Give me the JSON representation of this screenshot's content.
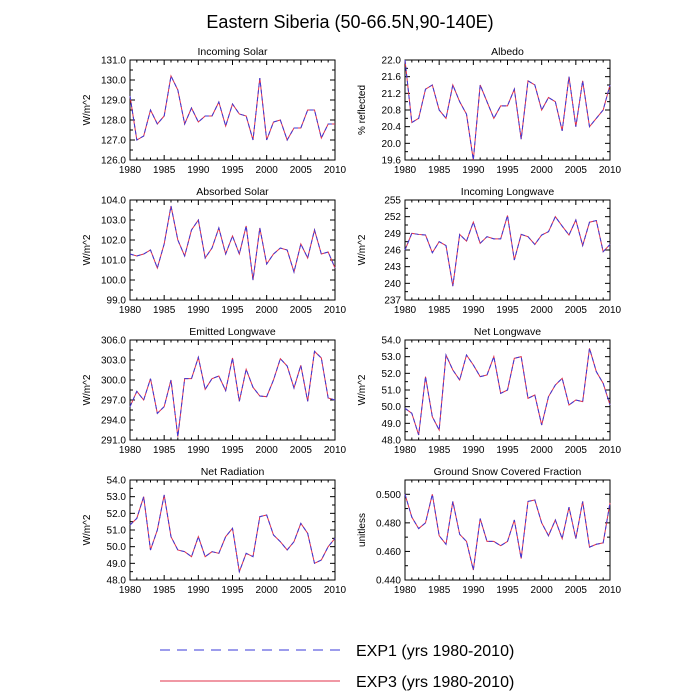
{
  "figure": {
    "title": "Eastern Siberia (50-66.5N,90-140E)",
    "colors": {
      "exp1": "#3a3ad8",
      "exp3": "#e0304a",
      "axis": "#000000"
    }
  },
  "legend": {
    "entries": [
      {
        "name": "EXP1 (yrs 1980-2010)",
        "style": "dashed",
        "color": "#3a3ad8"
      },
      {
        "name": "EXP3 (yrs 1980-2010)",
        "style": "solid",
        "color": "#e0304a"
      }
    ]
  },
  "chart_data": [
    {
      "type": "line",
      "title": "Incoming Solar",
      "ylabel": "W/m^2",
      "ylim": [
        126.0,
        131.0
      ],
      "yticks": [
        126.0,
        127.0,
        128.0,
        129.0,
        130.0,
        131.0
      ],
      "ytick_labels": [
        "126.0",
        "127.0",
        "128.0",
        "129.0",
        "130.0",
        "131.0"
      ],
      "xlim": [
        1980,
        2010
      ],
      "xticks": [
        1980,
        1985,
        1990,
        1995,
        2000,
        2005,
        2010
      ],
      "x": [
        1980,
        1981,
        1982,
        1983,
        1984,
        1985,
        1986,
        1987,
        1988,
        1989,
        1990,
        1991,
        1992,
        1993,
        1994,
        1995,
        1996,
        1997,
        1998,
        1999,
        2000,
        2001,
        2002,
        2003,
        2004,
        2005,
        2006,
        2007,
        2008,
        2009,
        2010
      ],
      "series": [
        {
          "name": "EXP1 (yrs 1980-2010)",
          "values": [
            129.2,
            127.0,
            127.2,
            128.5,
            127.8,
            128.2,
            130.2,
            129.5,
            127.8,
            128.6,
            127.9,
            128.2,
            128.2,
            128.9,
            127.7,
            128.8,
            128.3,
            128.2,
            127.0,
            130.1,
            127.0,
            127.9,
            128.0,
            127.0,
            127.6,
            127.6,
            128.5,
            128.5,
            127.1,
            127.8,
            127.8
          ]
        },
        {
          "name": "EXP3 (yrs 1980-2010)",
          "values": [
            129.2,
            127.0,
            127.2,
            128.5,
            127.8,
            128.2,
            130.2,
            129.5,
            127.8,
            128.6,
            127.9,
            128.2,
            128.2,
            128.9,
            127.7,
            128.8,
            128.3,
            128.2,
            127.0,
            130.1,
            127.0,
            127.9,
            128.0,
            127.0,
            127.6,
            127.6,
            128.5,
            128.5,
            127.1,
            127.8,
            127.8
          ]
        }
      ]
    },
    {
      "type": "line",
      "title": "Albedo",
      "ylabel": "% reflected",
      "ylim": [
        19.6,
        22.0
      ],
      "yticks": [
        19.6,
        20.0,
        20.4,
        20.8,
        21.2,
        21.6,
        22.0
      ],
      "ytick_labels": [
        "19.6",
        "20.0",
        "20.4",
        "20.8",
        "21.2",
        "21.6",
        "22.0"
      ],
      "xlim": [
        1980,
        2010
      ],
      "xticks": [
        1980,
        1985,
        1990,
        1995,
        2000,
        2005,
        2010
      ],
      "x": [
        1980,
        1981,
        1982,
        1983,
        1984,
        1985,
        1986,
        1987,
        1988,
        1989,
        1990,
        1991,
        1992,
        1993,
        1994,
        1995,
        1996,
        1997,
        1998,
        1999,
        2000,
        2001,
        2002,
        2003,
        2004,
        2005,
        2006,
        2007,
        2008,
        2009,
        2010
      ],
      "series": [
        {
          "name": "EXP1 (yrs 1980-2010)",
          "values": [
            22.0,
            20.5,
            20.6,
            21.3,
            21.4,
            20.8,
            20.6,
            21.4,
            21.0,
            20.7,
            19.6,
            21.4,
            21.0,
            20.6,
            20.9,
            20.9,
            21.3,
            20.1,
            21.5,
            21.4,
            20.8,
            21.1,
            21.0,
            20.3,
            21.6,
            20.4,
            21.5,
            20.4,
            20.6,
            20.8,
            21.4
          ]
        },
        {
          "name": "EXP3 (yrs 1980-2010)",
          "values": [
            22.0,
            20.5,
            20.6,
            21.3,
            21.4,
            20.8,
            20.6,
            21.4,
            21.0,
            20.7,
            19.6,
            21.4,
            21.0,
            20.6,
            20.9,
            20.9,
            21.3,
            20.1,
            21.5,
            21.4,
            20.8,
            21.1,
            21.0,
            20.3,
            21.6,
            20.4,
            21.5,
            20.4,
            20.6,
            20.8,
            21.4
          ]
        }
      ]
    },
    {
      "type": "line",
      "title": "Absorbed Solar",
      "ylabel": "W/m^2",
      "ylim": [
        99.0,
        104.0
      ],
      "yticks": [
        99.0,
        100.0,
        101.0,
        102.0,
        103.0,
        104.0
      ],
      "ytick_labels": [
        "99.0",
        "100.0",
        "101.0",
        "102.0",
        "103.0",
        "104.0"
      ],
      "xlim": [
        1980,
        2010
      ],
      "xticks": [
        1980,
        1985,
        1990,
        1995,
        2000,
        2005,
        2010
      ],
      "x": [
        1980,
        1981,
        1982,
        1983,
        1984,
        1985,
        1986,
        1987,
        1988,
        1989,
        1990,
        1991,
        1992,
        1993,
        1994,
        1995,
        1996,
        1997,
        1998,
        1999,
        2000,
        2001,
        2002,
        2003,
        2004,
        2005,
        2006,
        2007,
        2008,
        2009,
        2010
      ],
      "series": [
        {
          "name": "EXP1 (yrs 1980-2010)",
          "values": [
            101.3,
            101.2,
            101.3,
            101.5,
            100.6,
            101.8,
            103.7,
            102.0,
            101.2,
            102.5,
            103.0,
            101.1,
            101.6,
            102.6,
            101.3,
            102.2,
            101.3,
            102.7,
            100.0,
            102.6,
            100.8,
            101.3,
            101.6,
            101.5,
            100.4,
            101.8,
            101.1,
            102.5,
            101.3,
            101.4,
            100.6
          ]
        },
        {
          "name": "EXP3 (yrs 1980-2010)",
          "values": [
            101.3,
            101.2,
            101.3,
            101.5,
            100.6,
            101.8,
            103.7,
            102.0,
            101.2,
            102.5,
            103.0,
            101.1,
            101.6,
            102.6,
            101.3,
            102.2,
            101.3,
            102.7,
            100.0,
            102.6,
            100.8,
            101.3,
            101.6,
            101.5,
            100.4,
            101.8,
            101.1,
            102.5,
            101.3,
            101.4,
            100.6
          ]
        }
      ]
    },
    {
      "type": "line",
      "title": "Incoming Longwave",
      "ylabel": "W/m^2",
      "ylim": [
        237,
        255
      ],
      "yticks": [
        237,
        240,
        243,
        246,
        249,
        252,
        255
      ],
      "ytick_labels": [
        "237",
        "240",
        "243",
        "246",
        "249",
        "252",
        "255"
      ],
      "xlim": [
        1980,
        2010
      ],
      "xticks": [
        1980,
        1985,
        1990,
        1995,
        2000,
        2005,
        2010
      ],
      "x": [
        1980,
        1981,
        1982,
        1983,
        1984,
        1985,
        1986,
        1987,
        1988,
        1989,
        1990,
        1991,
        1992,
        1993,
        1994,
        1995,
        1996,
        1997,
        1998,
        1999,
        2000,
        2001,
        2002,
        2003,
        2004,
        2005,
        2006,
        2007,
        2008,
        2009,
        2010
      ],
      "series": [
        {
          "name": "EXP1 (yrs 1980-2010)",
          "values": [
            246.0,
            249.0,
            248.8,
            248.7,
            245.5,
            247.5,
            246.8,
            239.5,
            248.8,
            247.6,
            251.0,
            247.2,
            248.4,
            248.0,
            248.0,
            252.2,
            244.2,
            248.8,
            248.4,
            247.0,
            248.7,
            249.3,
            252.0,
            250.3,
            248.7,
            251.4,
            246.8,
            251.0,
            251.3,
            245.7,
            247.0
          ]
        },
        {
          "name": "EXP3 (yrs 1980-2010)",
          "values": [
            246.0,
            249.0,
            248.8,
            248.7,
            245.5,
            247.5,
            246.8,
            239.5,
            248.8,
            247.6,
            251.0,
            247.2,
            248.4,
            248.0,
            248.0,
            252.2,
            244.2,
            248.8,
            248.4,
            247.0,
            248.7,
            249.3,
            252.0,
            250.3,
            248.7,
            251.4,
            246.8,
            251.0,
            251.3,
            245.7,
            247.0
          ]
        }
      ]
    },
    {
      "type": "line",
      "title": "Emitted Longwave",
      "ylabel": "W/m^2",
      "ylim": [
        291.0,
        306.0
      ],
      "yticks": [
        291.0,
        294.0,
        297.0,
        300.0,
        303.0,
        306.0
      ],
      "ytick_labels": [
        "291.0",
        "294.0",
        "297.0",
        "300.0",
        "303.0",
        "306.0"
      ],
      "xlim": [
        1980,
        2010
      ],
      "xticks": [
        1980,
        1985,
        1990,
        1995,
        2000,
        2005,
        2010
      ],
      "x": [
        1980,
        1981,
        1982,
        1983,
        1984,
        1985,
        1986,
        1987,
        1988,
        1989,
        1990,
        1991,
        1992,
        1993,
        1994,
        1995,
        1996,
        1997,
        1998,
        1999,
        2000,
        2001,
        2002,
        2003,
        2004,
        2005,
        2006,
        2007,
        2008,
        2009,
        2010
      ],
      "series": [
        {
          "name": "EXP1 (yrs 1980-2010)",
          "values": [
            296.0,
            298.3,
            297.0,
            300.2,
            295.0,
            296.0,
            300.0,
            291.5,
            300.2,
            300.2,
            303.4,
            298.6,
            300.2,
            300.6,
            298.4,
            303.3,
            296.8,
            301.6,
            298.9,
            297.6,
            297.5,
            300.0,
            303.2,
            302.1,
            298.8,
            302.2,
            296.8,
            304.3,
            303.3,
            297.3,
            297.0
          ]
        },
        {
          "name": "EXP3 (yrs 1980-2010)",
          "values": [
            296.0,
            298.3,
            297.0,
            300.2,
            295.0,
            296.0,
            300.0,
            291.5,
            300.2,
            300.2,
            303.4,
            298.6,
            300.2,
            300.6,
            298.4,
            303.3,
            296.8,
            301.6,
            298.9,
            297.6,
            297.5,
            300.0,
            303.2,
            302.1,
            298.8,
            302.2,
            296.8,
            304.3,
            303.3,
            297.3,
            297.0
          ]
        }
      ]
    },
    {
      "type": "line",
      "title": "Net Longwave",
      "ylabel": "W/m^2",
      "ylim": [
        48.0,
        54.0
      ],
      "yticks": [
        48.0,
        49.0,
        50.0,
        51.0,
        52.0,
        53.0,
        54.0
      ],
      "ytick_labels": [
        "48.0",
        "49.0",
        "50.0",
        "51.0",
        "52.0",
        "53.0",
        "54.0"
      ],
      "xlim": [
        1980,
        2010
      ],
      "xticks": [
        1980,
        1985,
        1990,
        1995,
        2000,
        2005,
        2010
      ],
      "x": [
        1980,
        1981,
        1982,
        1983,
        1984,
        1985,
        1986,
        1987,
        1988,
        1989,
        1990,
        1991,
        1992,
        1993,
        1994,
        1995,
        1996,
        1997,
        1998,
        1999,
        2000,
        2001,
        2002,
        2003,
        2004,
        2005,
        2006,
        2007,
        2008,
        2009,
        2010
      ],
      "series": [
        {
          "name": "EXP1 (yrs 1980-2010)",
          "values": [
            49.9,
            49.6,
            48.3,
            51.8,
            49.4,
            48.6,
            53.1,
            52.2,
            51.6,
            53.1,
            52.5,
            51.8,
            51.9,
            53.0,
            50.8,
            51.0,
            52.9,
            53.0,
            50.5,
            50.7,
            48.9,
            50.6,
            51.3,
            51.7,
            50.1,
            50.4,
            50.3,
            53.5,
            52.1,
            51.4,
            50.1
          ]
        },
        {
          "name": "EXP3 (yrs 1980-2010)",
          "values": [
            49.9,
            49.6,
            48.3,
            51.8,
            49.4,
            48.6,
            53.1,
            52.2,
            51.6,
            53.1,
            52.5,
            51.8,
            51.9,
            53.0,
            50.8,
            51.0,
            52.9,
            53.0,
            50.5,
            50.7,
            48.9,
            50.6,
            51.3,
            51.7,
            50.1,
            50.4,
            50.3,
            53.5,
            52.1,
            51.4,
            50.1
          ]
        }
      ]
    },
    {
      "type": "line",
      "title": "Net Radiation",
      "ylabel": "W/m^2",
      "ylim": [
        48.0,
        54.0
      ],
      "yticks": [
        48.0,
        49.0,
        50.0,
        51.0,
        52.0,
        53.0,
        54.0
      ],
      "ytick_labels": [
        "48.0",
        "49.0",
        "50.0",
        "51.0",
        "52.0",
        "53.0",
        "54.0"
      ],
      "xlim": [
        1980,
        2010
      ],
      "xticks": [
        1980,
        1985,
        1990,
        1995,
        2000,
        2005,
        2010
      ],
      "x": [
        1980,
        1981,
        1982,
        1983,
        1984,
        1985,
        1986,
        1987,
        1988,
        1989,
        1990,
        1991,
        1992,
        1993,
        1994,
        1995,
        1996,
        1997,
        1998,
        1999,
        2000,
        2001,
        2002,
        2003,
        2004,
        2005,
        2006,
        2007,
        2008,
        2009,
        2010
      ],
      "series": [
        {
          "name": "EXP1 (yrs 1980-2010)",
          "values": [
            51.3,
            51.7,
            53.0,
            49.8,
            51.0,
            53.1,
            50.6,
            49.8,
            49.7,
            49.4,
            50.6,
            49.4,
            49.7,
            49.6,
            50.6,
            51.1,
            48.5,
            49.6,
            49.4,
            51.8,
            51.9,
            50.7,
            50.3,
            49.8,
            50.3,
            51.4,
            50.8,
            49.0,
            49.2,
            50.0,
            50.5
          ]
        },
        {
          "name": "EXP3 (yrs 1980-2010)",
          "values": [
            51.3,
            51.7,
            53.0,
            49.8,
            51.0,
            53.1,
            50.6,
            49.8,
            49.7,
            49.4,
            50.6,
            49.4,
            49.7,
            49.6,
            50.6,
            51.1,
            48.5,
            49.6,
            49.4,
            51.8,
            51.9,
            50.7,
            50.3,
            49.8,
            50.3,
            51.4,
            50.8,
            49.0,
            49.2,
            50.0,
            50.5
          ]
        }
      ]
    },
    {
      "type": "line",
      "title": "Ground Snow Covered Fraction",
      "ylabel": "unitless",
      "ylim": [
        0.44,
        0.51
      ],
      "yticks": [
        0.44,
        0.46,
        0.48,
        0.5
      ],
      "ytick_labels": [
        "0.440",
        "0.460",
        "0.480",
        "0.500"
      ],
      "xlim": [
        1980,
        2010
      ],
      "xticks": [
        1980,
        1985,
        1990,
        1995,
        2000,
        2005,
        2010
      ],
      "x": [
        1980,
        1981,
        1982,
        1983,
        1984,
        1985,
        1986,
        1987,
        1988,
        1989,
        1990,
        1991,
        1992,
        1993,
        1994,
        1995,
        1996,
        1997,
        1998,
        1999,
        2000,
        2001,
        2002,
        2003,
        2004,
        2005,
        2006,
        2007,
        2008,
        2009,
        2010
      ],
      "series": [
        {
          "name": "EXP1 (yrs 1980-2010)",
          "values": [
            0.5,
            0.484,
            0.476,
            0.48,
            0.5,
            0.471,
            0.465,
            0.495,
            0.472,
            0.467,
            0.447,
            0.483,
            0.467,
            0.467,
            0.464,
            0.467,
            0.482,
            0.455,
            0.495,
            0.496,
            0.48,
            0.471,
            0.482,
            0.469,
            0.491,
            0.469,
            0.495,
            0.463,
            0.465,
            0.466,
            0.494
          ]
        },
        {
          "name": "EXP3 (yrs 1980-2010)",
          "values": [
            0.5,
            0.484,
            0.476,
            0.48,
            0.5,
            0.471,
            0.465,
            0.495,
            0.472,
            0.467,
            0.447,
            0.483,
            0.467,
            0.467,
            0.464,
            0.467,
            0.482,
            0.455,
            0.495,
            0.496,
            0.48,
            0.471,
            0.482,
            0.469,
            0.491,
            0.469,
            0.495,
            0.463,
            0.465,
            0.466,
            0.494
          ]
        }
      ]
    }
  ]
}
